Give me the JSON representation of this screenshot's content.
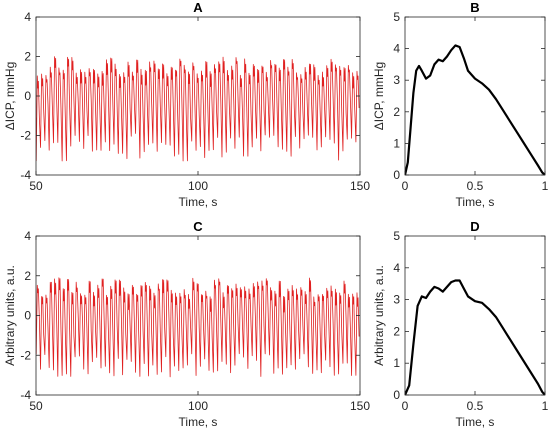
{
  "chart_data": [
    {
      "id": "A",
      "type": "line",
      "title": "A",
      "xlabel": "Time, s",
      "ylabel": "ΔICP, mmHg",
      "xlim": [
        50,
        150
      ],
      "ylim": [
        -4,
        4
      ],
      "xticks": [
        50,
        100,
        150
      ],
      "yticks": [
        -4,
        -2,
        0,
        2,
        4
      ],
      "series": [
        {
          "color": "#e02020",
          "waveform": "oscillation",
          "rate_hz": 0.75,
          "peak_min": 1.0,
          "peak_max": 2.0,
          "trough_min": -3.3,
          "trough_max": -1.9
        }
      ]
    },
    {
      "id": "B",
      "type": "line",
      "title": "B",
      "xlabel": "Time, s",
      "ylabel": "ΔICP, mmHg",
      "xlim": [
        0,
        1
      ],
      "ylim": [
        0,
        5
      ],
      "xticks": [
        0,
        0.5,
        1
      ],
      "yticks": [
        0,
        1,
        2,
        3,
        4,
        5
      ],
      "series": [
        {
          "color": "#000000",
          "x": [
            0,
            0.02,
            0.04,
            0.06,
            0.08,
            0.1,
            0.12,
            0.15,
            0.18,
            0.21,
            0.24,
            0.27,
            0.3,
            0.33,
            0.36,
            0.39,
            0.42,
            0.45,
            0.5,
            0.55,
            0.6,
            0.65,
            0.7,
            0.75,
            0.8,
            0.85,
            0.9,
            0.95,
            0.98,
            1.0
          ],
          "y": [
            0,
            0.4,
            1.5,
            2.6,
            3.3,
            3.45,
            3.3,
            3.05,
            3.15,
            3.5,
            3.65,
            3.6,
            3.75,
            3.95,
            4.1,
            4.05,
            3.7,
            3.3,
            3.05,
            2.9,
            2.7,
            2.4,
            2.05,
            1.7,
            1.35,
            1.0,
            0.65,
            0.3,
            0.08,
            0
          ]
        }
      ]
    },
    {
      "id": "C",
      "type": "line",
      "title": "C",
      "xlabel": "Time, s",
      "ylabel": "Arbitrary units, a.u.",
      "xlim": [
        50,
        150
      ],
      "ylim": [
        -4,
        4
      ],
      "xticks": [
        50,
        100,
        150
      ],
      "yticks": [
        -4,
        -2,
        0,
        2,
        4
      ],
      "series": [
        {
          "color": "#e02020",
          "waveform": "oscillation",
          "rate_hz": 0.75,
          "peak_min": 0.9,
          "peak_max": 1.9,
          "trough_min": -3.1,
          "trough_max": -1.9
        }
      ]
    },
    {
      "id": "D",
      "type": "line",
      "title": "D",
      "xlabel": "Time, s",
      "ylabel": "Arbitrary units, a.u.",
      "xlim": [
        0,
        1
      ],
      "ylim": [
        0,
        5
      ],
      "xticks": [
        0,
        0.5,
        1
      ],
      "yticks": [
        0,
        1,
        2,
        3,
        4,
        5
      ],
      "series": [
        {
          "color": "#000000",
          "x": [
            0,
            0.03,
            0.06,
            0.09,
            0.12,
            0.15,
            0.18,
            0.21,
            0.24,
            0.27,
            0.3,
            0.33,
            0.36,
            0.39,
            0.42,
            0.45,
            0.5,
            0.55,
            0.6,
            0.65,
            0.7,
            0.75,
            0.8,
            0.85,
            0.9,
            0.95,
            0.98,
            1.0
          ],
          "y": [
            0,
            0.3,
            1.6,
            2.8,
            3.1,
            3.05,
            3.25,
            3.4,
            3.35,
            3.25,
            3.4,
            3.55,
            3.6,
            3.6,
            3.35,
            3.1,
            2.95,
            2.9,
            2.7,
            2.45,
            2.1,
            1.75,
            1.4,
            1.05,
            0.7,
            0.35,
            0.1,
            0
          ]
        }
      ]
    }
  ]
}
